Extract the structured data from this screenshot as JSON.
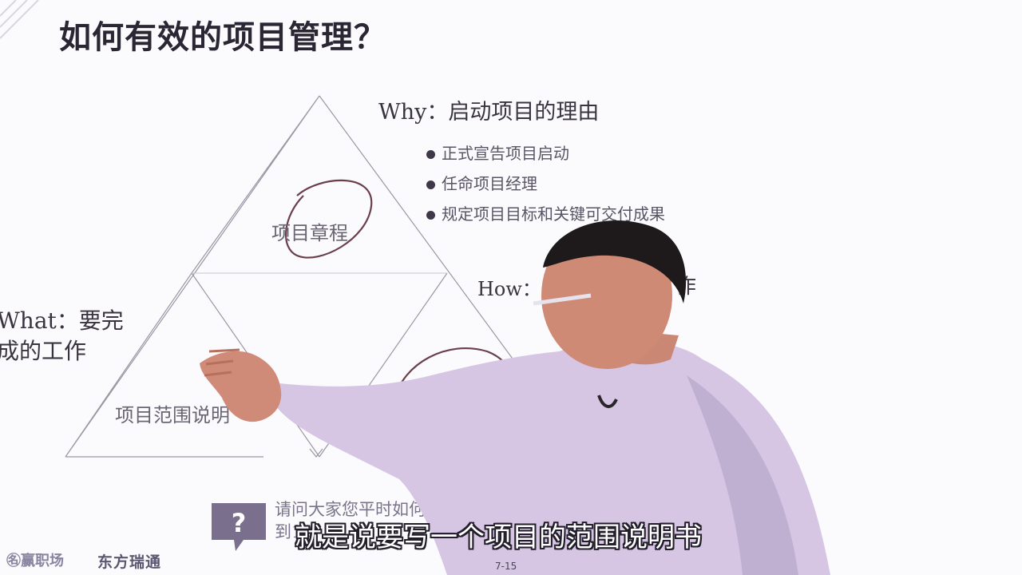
{
  "slide": {
    "title": "如何有效的项目管理？",
    "page_number": "7-15"
  },
  "why": {
    "heading": "Why：启动项目的理由",
    "bullets": [
      "正式宣告项目启动",
      "任命项目经理",
      "规定项目目标和关键可交付成果"
    ]
  },
  "triangles": {
    "top_label": "项目章程",
    "left_label": "项目范围说明",
    "right_label": ""
  },
  "how": {
    "heading": "How：",
    "heading_tail": "作"
  },
  "what": {
    "line1": "What：要完",
    "line2": "成的工作"
  },
  "question": {
    "line1": "请问大家您平时如何做项目管理",
    "line2": "到10"
  },
  "subtitle": "就是说要写一个项目的范围说明书",
  "logo": {
    "brand": "㊔赢职场",
    "company": "东方瑞通"
  },
  "colors": {
    "background": "#fbfbfd",
    "annotation_ink": "#6b3f4a",
    "shirt": "#d6c6e4"
  },
  "icons": {
    "question": "question-icon"
  }
}
